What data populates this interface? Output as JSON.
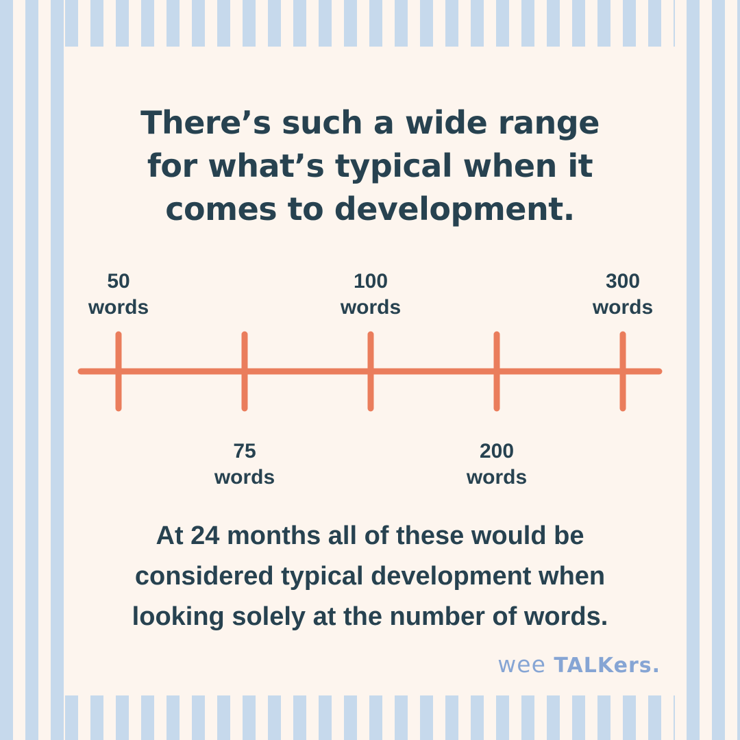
{
  "headline": [
    "There’s such a wide range",
    "for what’s typical when it",
    "comes to development."
  ],
  "timeline": {
    "line_color": "#ea7d5c",
    "markers": [
      {
        "number": "50",
        "unit": "words",
        "side": "above"
      },
      {
        "number": "75",
        "unit": "words",
        "side": "below"
      },
      {
        "number": "100",
        "unit": "words",
        "side": "above"
      },
      {
        "number": "200",
        "unit": "words",
        "side": "below"
      },
      {
        "number": "300",
        "unit": "words",
        "side": "above"
      }
    ]
  },
  "caption": [
    "At 24 months all of these would be",
    "considered typical development when",
    "looking solely at the number of words."
  ],
  "brand": {
    "word1": "wee",
    "word2": "TALKers",
    "dot": "."
  },
  "colors": {
    "text": "#274250",
    "accent": "#ea7d5c",
    "stripe": "#c6d9ec",
    "background": "#fdf5ee",
    "brand": "#86a5d4"
  }
}
